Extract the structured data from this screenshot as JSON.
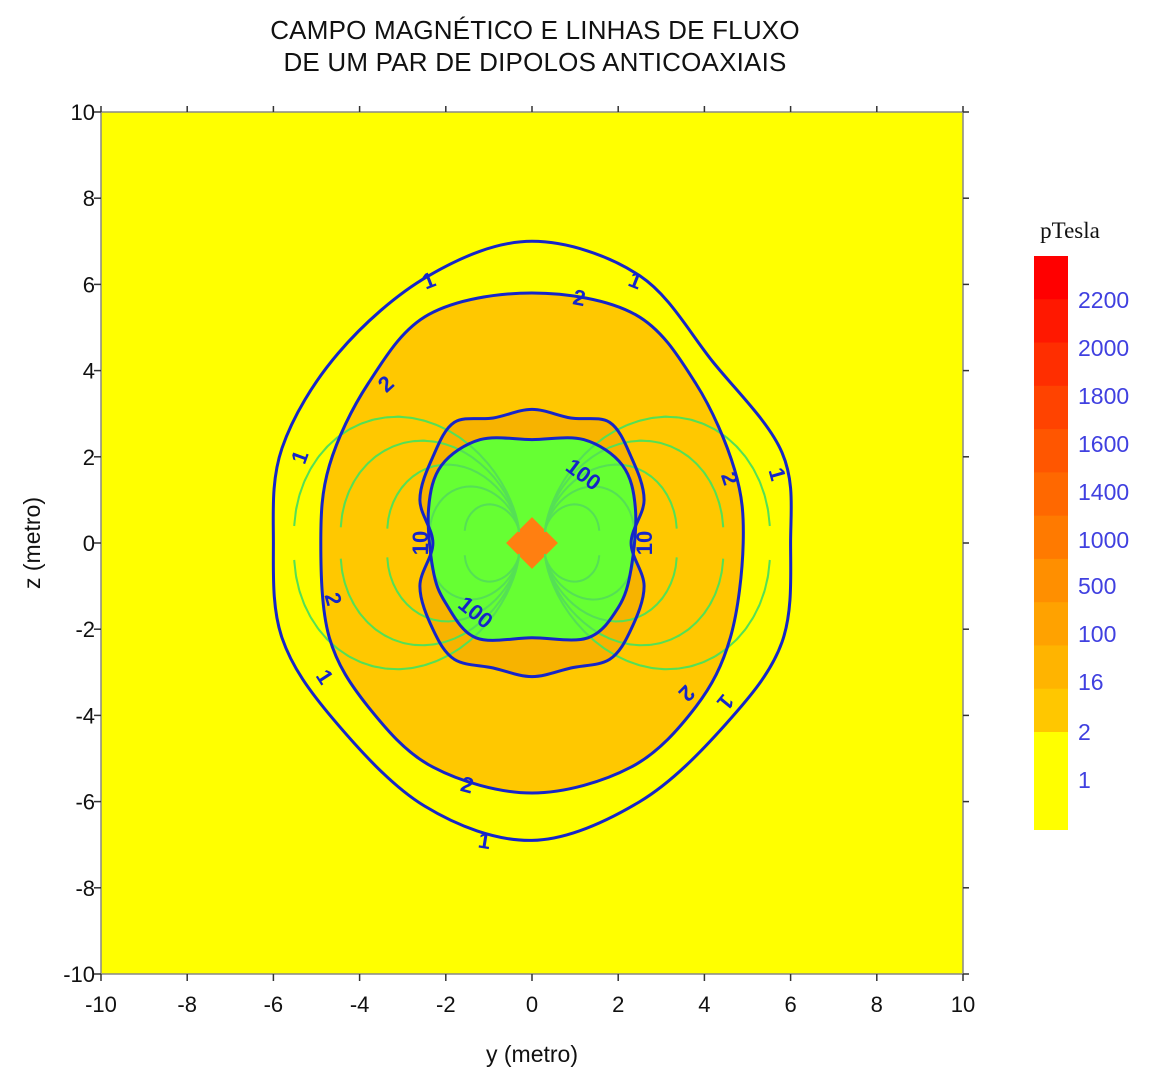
{
  "chart_data": {
    "type": "heatmap",
    "title_lines": [
      "CAMPO MAGNÉTICO E LINHAS DE FLUXO",
      "DE UM PAR DE DIPOLOS ANTICOAXIAIS"
    ],
    "xlabel": "y (metro)",
    "ylabel": "z (metro)",
    "xlim": [
      -10,
      10
    ],
    "ylim": [
      -10,
      10
    ],
    "xticks": [
      -10,
      -8,
      -6,
      -4,
      -2,
      0,
      2,
      4,
      6,
      8,
      10
    ],
    "yticks": [
      -10,
      -8,
      -6,
      -4,
      -2,
      0,
      2,
      4,
      6,
      8,
      10
    ],
    "colors": {
      "background": "#ffff00",
      "band_2": "#ffc800",
      "band_10": "#f7b300",
      "band_100": "#66ff33",
      "core": "#ff7f11",
      "contour_line": "#1525c8",
      "flux_line": "#55e055"
    },
    "contours": [
      {
        "level": "1",
        "shape": [
          [
            0,
            7
          ],
          [
            2.5,
            6.2
          ],
          [
            4.2,
            4.2
          ],
          [
            5.8,
            2.1
          ],
          [
            6,
            0
          ],
          [
            5.8,
            -2.3
          ],
          [
            4.5,
            -4.2
          ],
          [
            2.5,
            -6
          ],
          [
            0,
            -6.9
          ],
          [
            -2.5,
            -6.1
          ],
          [
            -4.6,
            -4.1
          ],
          [
            -5.8,
            -2.2
          ],
          [
            -6,
            0
          ],
          [
            -5.8,
            2.2
          ],
          [
            -4.5,
            4.4
          ],
          [
            -2.4,
            6.2
          ]
        ],
        "labels": [
          [
            -2.4,
            6.1
          ],
          [
            2.4,
            6.1
          ],
          [
            5.7,
            1.6
          ],
          [
            -5.4,
            2
          ],
          [
            -4.8,
            -3.1
          ],
          [
            4.5,
            -3.7
          ],
          [
            -1.1,
            -6.9
          ]
        ]
      },
      {
        "level": "2",
        "shape": [
          [
            0,
            5.8
          ],
          [
            2.4,
            5.3
          ],
          [
            3.8,
            3.7
          ],
          [
            4.7,
            1.7
          ],
          [
            4.9,
            0
          ],
          [
            4.6,
            -2.2
          ],
          [
            3.8,
            -3.8
          ],
          [
            2.3,
            -5.2
          ],
          [
            0,
            -5.8
          ],
          [
            -2.3,
            -5.2
          ],
          [
            -3.8,
            -3.8
          ],
          [
            -4.7,
            -2.2
          ],
          [
            -4.9,
            0
          ],
          [
            -4.7,
            1.8
          ],
          [
            -3.8,
            3.7
          ],
          [
            -2.4,
            5.3
          ]
        ],
        "labels": [
          [
            1.1,
            5.7
          ],
          [
            -3.4,
            3.7
          ],
          [
            4.6,
            1.5
          ],
          [
            -4.6,
            -1.3
          ],
          [
            3.6,
            -3.5
          ],
          [
            -1.5,
            -5.6
          ]
        ]
      },
      {
        "level": "100",
        "shape": [
          [
            0,
            2.4
          ],
          [
            1.2,
            2.4
          ],
          [
            2.1,
            1.8
          ],
          [
            2.4,
            0.8
          ],
          [
            2.3,
            -0.6
          ],
          [
            2,
            -1.5
          ],
          [
            1.3,
            -2.2
          ],
          [
            0,
            -2.2
          ],
          [
            -1.3,
            -2.2
          ],
          [
            -2,
            -1.4
          ],
          [
            -2.3,
            -0.6
          ],
          [
            -2.4,
            0.8
          ],
          [
            -2.1,
            1.8
          ],
          [
            -1.2,
            2.4
          ]
        ],
        "labels": [
          [
            1.2,
            1.6
          ],
          [
            -1.3,
            -1.6
          ]
        ]
      },
      {
        "level": "10",
        "shape": [
          [
            0,
            3.1
          ],
          [
            0.9,
            2.9
          ],
          [
            1.8,
            2.8
          ],
          [
            2.3,
            2
          ],
          [
            2.6,
            1
          ],
          [
            2.3,
            0
          ],
          [
            2.6,
            -1
          ],
          [
            2.3,
            -2
          ],
          [
            1.8,
            -2.7
          ],
          [
            0.9,
            -2.9
          ],
          [
            0,
            -3.1
          ],
          [
            -0.9,
            -2.9
          ],
          [
            -1.8,
            -2.7
          ],
          [
            -2.3,
            -2
          ],
          [
            -2.6,
            -1
          ],
          [
            -2.3,
            0
          ],
          [
            -2.6,
            1
          ],
          [
            -2.3,
            2
          ],
          [
            -1.8,
            2.8
          ],
          [
            -0.9,
            2.9
          ]
        ],
        "labels": [
          [
            -2.6,
            0
          ],
          [
            2.6,
            0
          ]
        ]
      }
    ],
    "colorbar": {
      "title": "pTesla",
      "labels": [
        "2200",
        "2000",
        "1800",
        "1600",
        "1400",
        "1000",
        "500",
        "100",
        "16",
        "2",
        "1"
      ],
      "colors": [
        "#ff0000",
        "#ff1800",
        "#ff2e00",
        "#ff4300",
        "#ff5600",
        "#ff6800",
        "#ff7a00",
        "#ff8f00",
        "#ffa200",
        "#ffb400",
        "#ffc700",
        "#ffff00"
      ]
    }
  }
}
